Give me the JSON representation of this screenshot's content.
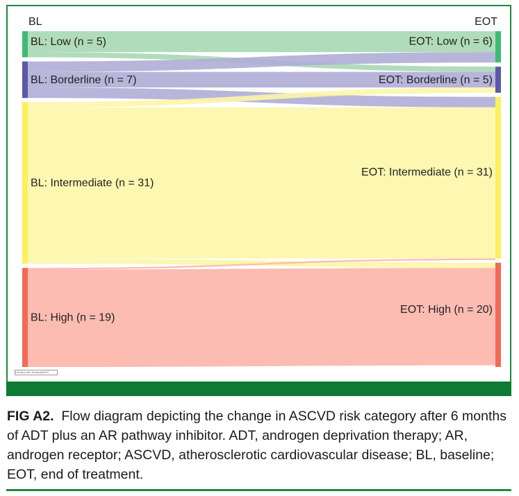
{
  "chart_data": {
    "type": "sankey",
    "left_header": "BL",
    "right_header": "EOT",
    "left_nodes": [
      {
        "id": "bl_low",
        "label": "BL: Low (n = 5)",
        "value": 5,
        "color": "#3dbb72"
      },
      {
        "id": "bl_border",
        "label": "BL: Borderline (n = 7)",
        "value": 7,
        "color": "#5a58a8"
      },
      {
        "id": "bl_inter",
        "label": "BL: Intermediate (n = 31)",
        "value": 31,
        "color": "#fbf15a"
      },
      {
        "id": "bl_high",
        "label": "BL: High (n = 19)",
        "value": 19,
        "color": "#f26a55"
      }
    ],
    "right_nodes": [
      {
        "id": "eot_low",
        "label": "EOT: Low (n = 6)",
        "value": 6,
        "color": "#3dbb72"
      },
      {
        "id": "eot_border",
        "label": "EOT: Borderline (n = 5)",
        "value": 5,
        "color": "#5a58a8"
      },
      {
        "id": "eot_inter",
        "label": "EOT: Intermediate (n = 31)",
        "value": 31,
        "color": "#fbf15a"
      },
      {
        "id": "eot_high",
        "label": "EOT: High (n = 20)",
        "value": 20,
        "color": "#f26a55"
      }
    ],
    "links": [
      {
        "source": "bl_low",
        "target": "eot_low",
        "value": 4,
        "color": "#a8d8b4"
      },
      {
        "source": "bl_low",
        "target": "eot_border",
        "value": 1,
        "color": "#a8d8b4"
      },
      {
        "source": "bl_border",
        "target": "eot_low",
        "value": 2,
        "color": "#b0add6"
      },
      {
        "source": "bl_border",
        "target": "eot_border",
        "value": 3,
        "color": "#b0add6"
      },
      {
        "source": "bl_border",
        "target": "eot_inter",
        "value": 2,
        "color": "#b0add6"
      },
      {
        "source": "bl_inter",
        "target": "eot_border",
        "value": 1,
        "color": "#fcf6a8"
      },
      {
        "source": "bl_inter",
        "target": "eot_inter",
        "value": 29,
        "color": "#fcf6a8"
      },
      {
        "source": "bl_inter",
        "target": "eot_high",
        "value": 1,
        "color": "#fcf6a8"
      },
      {
        "source": "bl_high",
        "target": "eot_inter",
        "value": 0.3,
        "color": "#fcb5a8"
      },
      {
        "source": "bl_high",
        "target": "eot_high",
        "value": 18.7,
        "color": "#fcb5a8"
      }
    ]
  },
  "caption": {
    "label": "FIG A2.",
    "text": "Flow diagram depicting the change in ASCVD risk category after 6 months of ADT plus an AR pathway inhibitor. ADT, androgen deprivation therapy; AR, androgen receptor; ASCVD, atherosclerotic cardiovascular disease; BL, baseline; EOT, end of treatment."
  },
  "watermark_text": "Created with SankeyMATIC"
}
